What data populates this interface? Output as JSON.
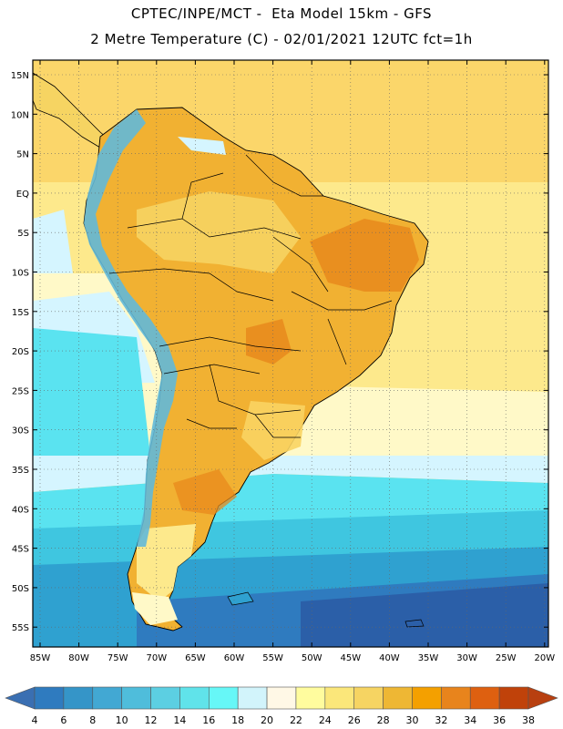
{
  "header": {
    "line1": "CPTEC/INPE/MCT -  Eta Model 15km - GFS",
    "line2": "2 Metre Temperature (C) - 02/01/2021 12UTC fct=1h"
  },
  "map": {
    "lat_labels": [
      "15N",
      "10N",
      "5N",
      "EQ",
      "5S",
      "10S",
      "15S",
      "20S",
      "25S",
      "30S",
      "35S",
      "40S",
      "45S",
      "50S",
      "55S"
    ],
    "lon_labels": [
      "85W",
      "80W",
      "75W",
      "70W",
      "65W",
      "60W",
      "55W",
      "50W",
      "45W",
      "40W",
      "35W",
      "30W",
      "25W",
      "20W"
    ],
    "colors": {
      "ocean_tropical": "#fbd66a",
      "ocean_warm": "#fde98c",
      "ocean_mild": "#fff9c8",
      "ocean_cool": "#d5f5ff",
      "ocean_cold1": "#5ae3f0",
      "ocean_cold2": "#3fc6e0",
      "ocean_cold3": "#2fa1d0",
      "ocean_cold4": "#2f7bbf",
      "ocean_cold5": "#2b5fa8",
      "land_hot": "#f1b132",
      "land_very_hot": "#e8891c",
      "land_warm": "#f9d462",
      "andes_cold": "#62b9d8",
      "border": "#000000"
    }
  },
  "colorbar": {
    "labels": [
      "4",
      "6",
      "8",
      "10",
      "12",
      "14",
      "16",
      "18",
      "20",
      "22",
      "24",
      "26",
      "28",
      "30",
      "32",
      "34",
      "36",
      "38"
    ],
    "colors": [
      "#3a6fb2",
      "#2f7bbf",
      "#3595c8",
      "#42a8d3",
      "#4fbddb",
      "#5ccfe2",
      "#60e3ea",
      "#66f7f7",
      "#d2f4fb",
      "#fff8e6",
      "#fffc9e",
      "#fbe77a",
      "#f6d462",
      "#eeb734",
      "#f4a000",
      "#e8841c",
      "#de6010",
      "#c0420a",
      "#b84010"
    ],
    "left_arrow": "#3a6fb2",
    "right_arrow": "#b84010"
  }
}
